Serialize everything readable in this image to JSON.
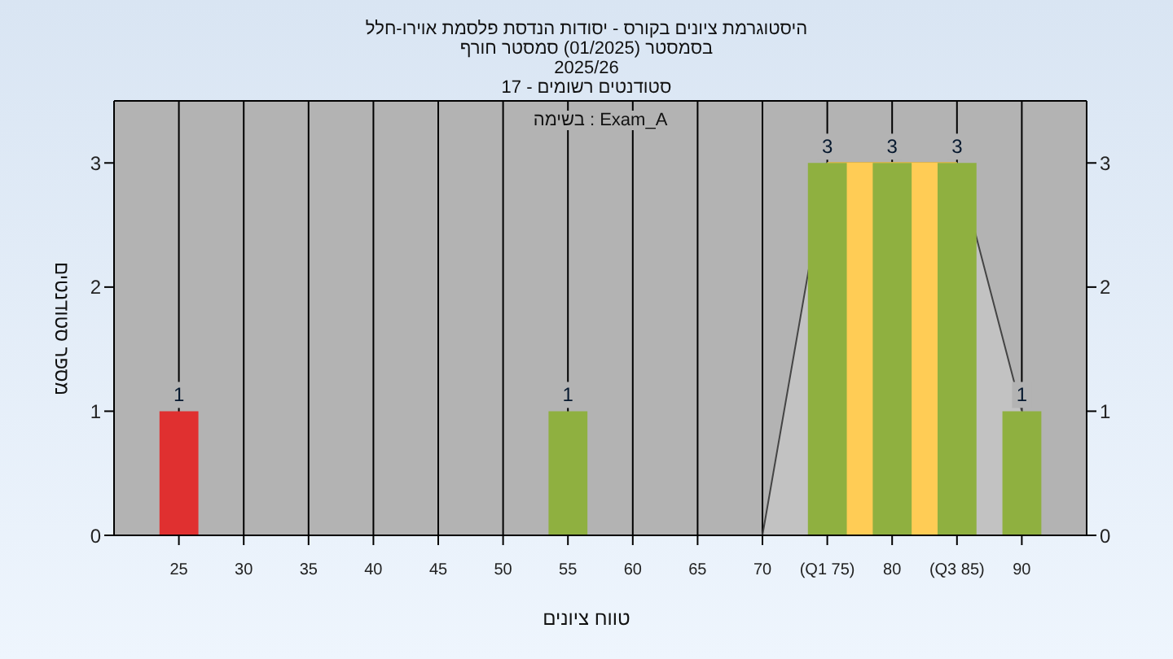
{
  "chart_data": {
    "type": "bar",
    "title": "היסטוגרמת ציונים בקורס - יסודות הנדסת פלסמת אוירו-חלל",
    "subtitle": "בסמסטר  (01/2025)  סמסטר חורף\n2025/26\nסטודנטים רשומים - 17",
    "xlabel": "טווח ציונים",
    "ylabel": "מספר סטודנטים",
    "annotations": [
      "Exam_A : בשימה"
    ],
    "series": [
      {
        "type": "area",
        "x": [
          70,
          75,
          80,
          85,
          90
        ],
        "values": [
          0,
          3,
          3,
          3,
          1
        ],
        "color": "#c2c2c2"
      },
      {
        "type": "area",
        "x": [
          75,
          85
        ],
        "values": [
          3,
          3
        ],
        "color": "#ffcc55"
      },
      {
        "x": [
          25,
          55,
          75,
          80,
          85,
          90
        ],
        "values": [
          1,
          1,
          3,
          3,
          3,
          1
        ],
        "value_labels": [
          "1",
          "1",
          "3",
          "3",
          "3",
          "1"
        ],
        "colors": [
          "#e03030",
          "#8fb040",
          "#8fb040",
          "#8fb040",
          "#8fb040",
          "#8fb040"
        ]
      }
    ],
    "grid": true,
    "xlim": [
      20,
      95
    ],
    "xticks": [
      25,
      30,
      35,
      40,
      45,
      50,
      55,
      60,
      65,
      70,
      {
        "value": 75,
        "label": "(Q1 75)"
      },
      80,
      {
        "value": 85,
        "label": "(Q3 85)"
      },
      90
    ],
    "ylim": [
      0,
      3.5
    ],
    "yticks": [
      0,
      1,
      2,
      3
    ],
    "y2lim": [
      0,
      3.5
    ],
    "y2ticks": [
      0,
      1,
      2,
      3
    ]
  }
}
